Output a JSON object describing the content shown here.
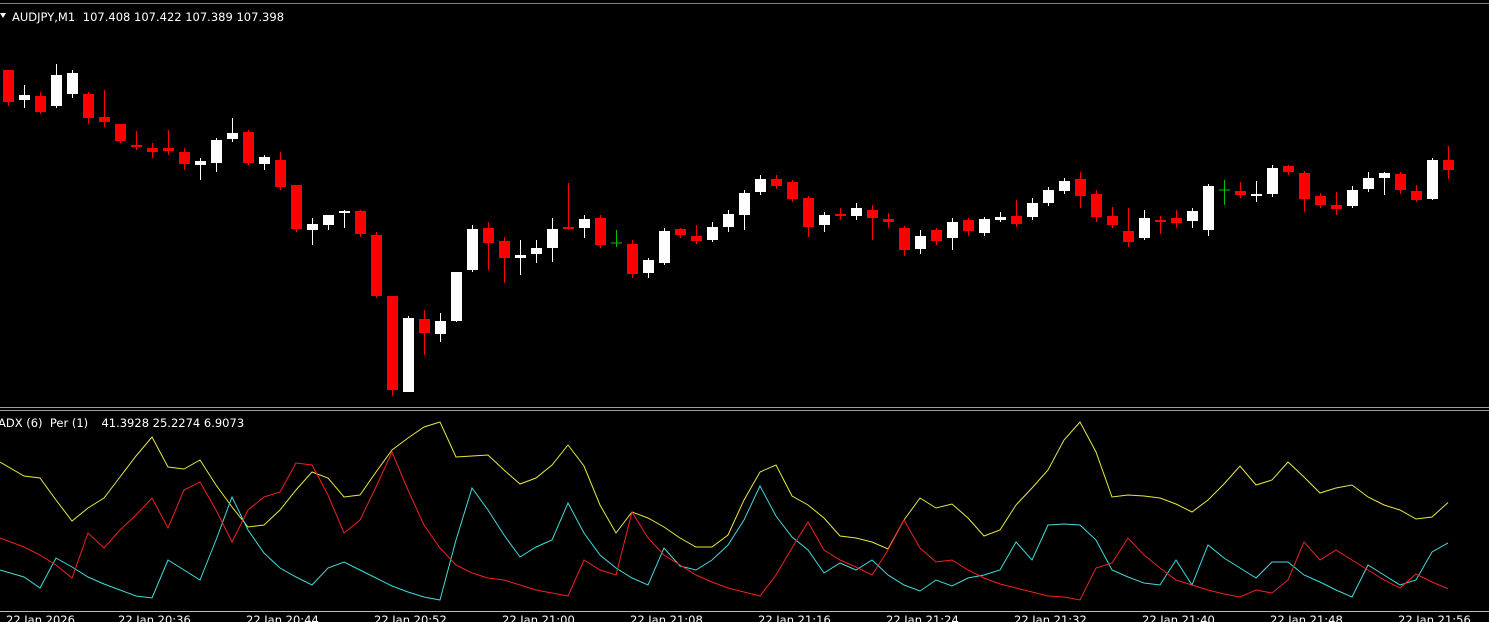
{
  "chart_data": [
    {
      "type": "candlestick",
      "title": "AUDJPY,M1",
      "categories": [
        "22 Jan 2026",
        null,
        null,
        null,
        null,
        null,
        null,
        "22 Jan 20:36",
        null,
        null,
        null,
        null,
        null,
        null,
        null,
        "22 Jan 20:44",
        null,
        null,
        null,
        null,
        null,
        null,
        null,
        "22 Jan 20:52",
        null,
        null,
        null,
        null,
        null,
        null,
        null,
        "22 Jan 21:00",
        null,
        null,
        null,
        null,
        null,
        null,
        null,
        "22 Jan 21:08",
        null,
        null,
        null,
        null,
        null,
        null,
        null,
        "22 Jan 21:16",
        null,
        null,
        null,
        null,
        null,
        null,
        null,
        "22 Jan 21:24",
        null,
        null,
        null,
        null,
        null,
        null,
        null,
        "22 Jan 21:32",
        null,
        null,
        null,
        null,
        null,
        null,
        null,
        "22 Jan 21:40",
        null,
        null,
        null,
        null,
        null,
        null,
        null,
        "22 Jan 21:48",
        null,
        null,
        null,
        null,
        null,
        null,
        null,
        "22 Jan 21:56",
        null,
        null,
        null
      ],
      "open": [
        107.498,
        107.468,
        107.472,
        107.462,
        107.474,
        107.474,
        107.451,
        107.444,
        107.423,
        107.42,
        107.42,
        107.416,
        107.403,
        107.405,
        107.429,
        107.436,
        107.404,
        107.408,
        107.383,
        107.338,
        107.343,
        107.355,
        107.357,
        107.333,
        107.272,
        107.176,
        107.249,
        107.234,
        107.247,
        107.298,
        107.34,
        107.327,
        107.31,
        107.314,
        107.32,
        107.341,
        107.34,
        107.35,
        107.325,
        107.324,
        107.295,
        107.305,
        107.339,
        107.332,
        107.328,
        107.341,
        107.353,
        107.376,
        107.389,
        107.386,
        107.37,
        107.343,
        107.354,
        107.352,
        107.358,
        107.349,
        107.34,
        107.319,
        107.338,
        107.33,
        107.348,
        107.335,
        107.348,
        107.352,
        107.351,
        107.365,
        107.377,
        107.389,
        107.374,
        107.352,
        107.337,
        107.33,
        107.348,
        107.35,
        107.347,
        107.338,
        107.378,
        107.377,
        107.372,
        107.374,
        107.402,
        107.395,
        107.372,
        107.363,
        107.362,
        107.379,
        107.39,
        107.394,
        107.377,
        107.369,
        107.408
      ],
      "high": [
        107.498,
        107.483,
        107.476,
        107.504,
        107.498,
        107.476,
        107.478,
        107.444,
        107.437,
        107.425,
        107.438,
        107.42,
        107.41,
        107.43,
        107.45,
        107.438,
        107.413,
        107.416,
        107.383,
        107.35,
        107.353,
        107.358,
        107.358,
        107.336,
        107.272,
        107.252,
        107.258,
        107.255,
        107.296,
        107.343,
        107.346,
        107.331,
        107.328,
        107.328,
        107.35,
        107.385,
        107.353,
        107.353,
        107.338,
        107.328,
        107.31,
        107.34,
        107.34,
        107.343,
        107.346,
        107.358,
        107.378,
        107.393,
        107.393,
        107.388,
        107.372,
        107.356,
        107.36,
        107.365,
        107.363,
        107.355,
        107.342,
        107.338,
        107.34,
        107.35,
        107.35,
        107.351,
        107.356,
        107.368,
        107.37,
        107.381,
        107.39,
        107.396,
        107.378,
        107.361,
        107.36,
        107.358,
        107.352,
        107.358,
        107.36,
        107.384,
        107.388,
        107.386,
        107.387,
        107.403,
        107.403,
        107.397,
        107.375,
        107.376,
        107.382,
        107.396,
        107.396,
        107.396,
        107.383,
        107.41,
        107.422
      ],
      "low": [
        107.462,
        107.46,
        107.454,
        107.46,
        107.47,
        107.444,
        107.441,
        107.425,
        107.418,
        107.41,
        107.413,
        107.398,
        107.388,
        107.396,
        107.426,
        107.403,
        107.398,
        107.378,
        107.336,
        107.323,
        107.338,
        107.34,
        107.331,
        107.27,
        107.172,
        107.176,
        107.213,
        107.226,
        107.246,
        107.296,
        107.298,
        107.285,
        107.293,
        107.305,
        107.306,
        107.338,
        107.33,
        107.32,
        107.321,
        107.29,
        107.29,
        107.303,
        107.33,
        107.324,
        107.326,
        107.336,
        107.338,
        107.373,
        107.379,
        107.366,
        107.331,
        107.336,
        107.348,
        107.348,
        107.328,
        107.34,
        107.312,
        107.314,
        107.323,
        107.318,
        107.332,
        107.332,
        107.346,
        107.341,
        107.348,
        107.362,
        107.374,
        107.36,
        107.346,
        107.34,
        107.321,
        107.328,
        107.334,
        107.34,
        107.34,
        107.332,
        107.363,
        107.37,
        107.366,
        107.371,
        107.393,
        107.356,
        107.36,
        107.353,
        107.36,
        107.376,
        107.373,
        107.374,
        107.366,
        107.368,
        107.389
      ],
      "close": [
        107.466,
        107.473,
        107.456,
        107.493,
        107.495,
        107.45,
        107.446,
        107.427,
        107.421,
        107.416,
        107.417,
        107.404,
        107.407,
        107.428,
        107.435,
        107.405,
        107.411,
        107.381,
        107.339,
        107.344,
        107.353,
        107.357,
        107.334,
        107.272,
        107.178,
        107.25,
        107.235,
        107.247,
        107.296,
        107.339,
        107.325,
        107.31,
        107.313,
        107.32,
        107.339,
        107.339,
        107.349,
        107.323,
        107.325,
        107.294,
        107.308,
        107.337,
        107.333,
        107.327,
        107.341,
        107.354,
        107.375,
        107.389,
        107.382,
        107.369,
        107.341,
        107.353,
        107.352,
        107.36,
        107.35,
        107.346,
        107.318,
        107.332,
        107.327,
        107.346,
        107.337,
        107.349,
        107.351,
        107.344,
        107.365,
        107.378,
        107.387,
        107.372,
        107.351,
        107.343,
        107.326,
        107.35,
        107.346,
        107.345,
        107.357,
        107.382,
        107.378,
        107.373,
        107.374,
        107.4,
        107.396,
        107.369,
        107.363,
        107.359,
        107.378,
        107.39,
        107.395,
        107.378,
        107.368,
        107.408,
        107.398
      ],
      "ylim": [
        107.16,
        107.56
      ],
      "up_color": "#ffffff",
      "down_color": "#ff0000",
      "doji_color": "#00c000"
    },
    {
      "type": "line",
      "title": "ADX (6)  Per (1)",
      "ylim": [
        0,
        78.4
      ],
      "series": [
        {
          "color": "#e8e840",
          "values": [
            57.6,
            52,
            51.2,
            42.4,
            34,
            39.2,
            43.2,
            51.6,
            60,
            67.6,
            55.6,
            54.8,
            58.4,
            48.4,
            39.6,
            31.6,
            32.4,
            38.4,
            46.4,
            53.6,
            51.2,
            43.6,
            44.4,
            53.6,
            62.4,
            67.2,
            71.6,
            73.6,
            59.6,
            60,
            60.4,
            54.4,
            48.8,
            51.2,
            56.4,
            64.4,
            56,
            40.4,
            29.2,
            37.6,
            35.2,
            31.6,
            27.2,
            23.6,
            23.6,
            28.4,
            42.4,
            53.6,
            56.4,
            44,
            40.4,
            35.2,
            28,
            27.2,
            25.6,
            22.8,
            34.4,
            43.2,
            39.2,
            40.8,
            35.2,
            28,
            30.4,
            40.4,
            47.2,
            54.4,
            66.4,
            73.6,
            61.6,
            43.6,
            44.4,
            44,
            43.2,
            40.8,
            37.6,
            42.4,
            48.8,
            56,
            48.4,
            50.4,
            57.6,
            51.6,
            45.2,
            47.2,
            48.4,
            43.6,
            40.4,
            38.4,
            34.8,
            35.6,
            41.3928
          ]
        },
        {
          "color": "#40dcdc",
          "values": [
            14.4,
            11.6,
            7.2,
            19.2,
            15.6,
            11.6,
            8.8,
            6.4,
            4,
            3.2,
            18.4,
            14.4,
            10.4,
            26.4,
            43.6,
            30.4,
            21.2,
            15.2,
            11.6,
            8.4,
            15.2,
            17.6,
            14.4,
            11.2,
            8,
            5.6,
            3.6,
            2.4,
            26.4,
            47.2,
            38.4,
            28.4,
            19.6,
            23.6,
            26.4,
            41.2,
            29.2,
            20.4,
            15.2,
            11.2,
            8.4,
            23.2,
            16,
            14.4,
            18.4,
            24.4,
            34.4,
            48,
            36,
            27.6,
            22.4,
            13.2,
            17.2,
            14.4,
            18.4,
            12.4,
            8.4,
            6,
            10.4,
            8,
            11.2,
            12.4,
            14.4,
            25.6,
            18.4,
            32.4,
            32.8,
            32.4,
            26.4,
            14.4,
            11.6,
            9.2,
            8.4,
            18.4,
            8.4,
            24.4,
            19.2,
            15.2,
            11.2,
            17.6,
            17.6,
            12.4,
            9.6,
            6.4,
            3.6,
            16.4,
            12.4,
            8.4,
            10.4,
            21.6,
            25.2274
          ]
        },
        {
          "color": "#f02020",
          "values": [
            27.2,
            23.6,
            20.4,
            16.4,
            11.2,
            29.2,
            23.2,
            30.4,
            36.4,
            43.2,
            31.2,
            46.4,
            49.6,
            38.4,
            25.6,
            38.4,
            43.6,
            45.6,
            57.2,
            56.4,
            44.4,
            29.2,
            34.4,
            47.6,
            61.6,
            46.4,
            32.4,
            23.2,
            16.4,
            13.2,
            11.2,
            10.4,
            8.4,
            6.4,
            5.2,
            4,
            18.4,
            14.4,
            12.4,
            37.6,
            27.2,
            20.4,
            16.4,
            12.4,
            9.6,
            7.2,
            5.6,
            4,
            12.4,
            23.2,
            33.6,
            22.4,
            18.4,
            15.6,
            12.4,
            22.4,
            34.4,
            23.2,
            17.6,
            18.4,
            14.4,
            11.2,
            8.8,
            7.2,
            5.6,
            4,
            3.6,
            2.4,
            15.2,
            17.2,
            27.2,
            20.4,
            15.2,
            10.4,
            8.4,
            6.4,
            4.8,
            3.6,
            6.4,
            5.2,
            10.4,
            25.6,
            18.4,
            22.4,
            18.4,
            14.4,
            10.4,
            7.2,
            12.8,
            9.6,
            6.9073
          ]
        }
      ]
    }
  ]
}
